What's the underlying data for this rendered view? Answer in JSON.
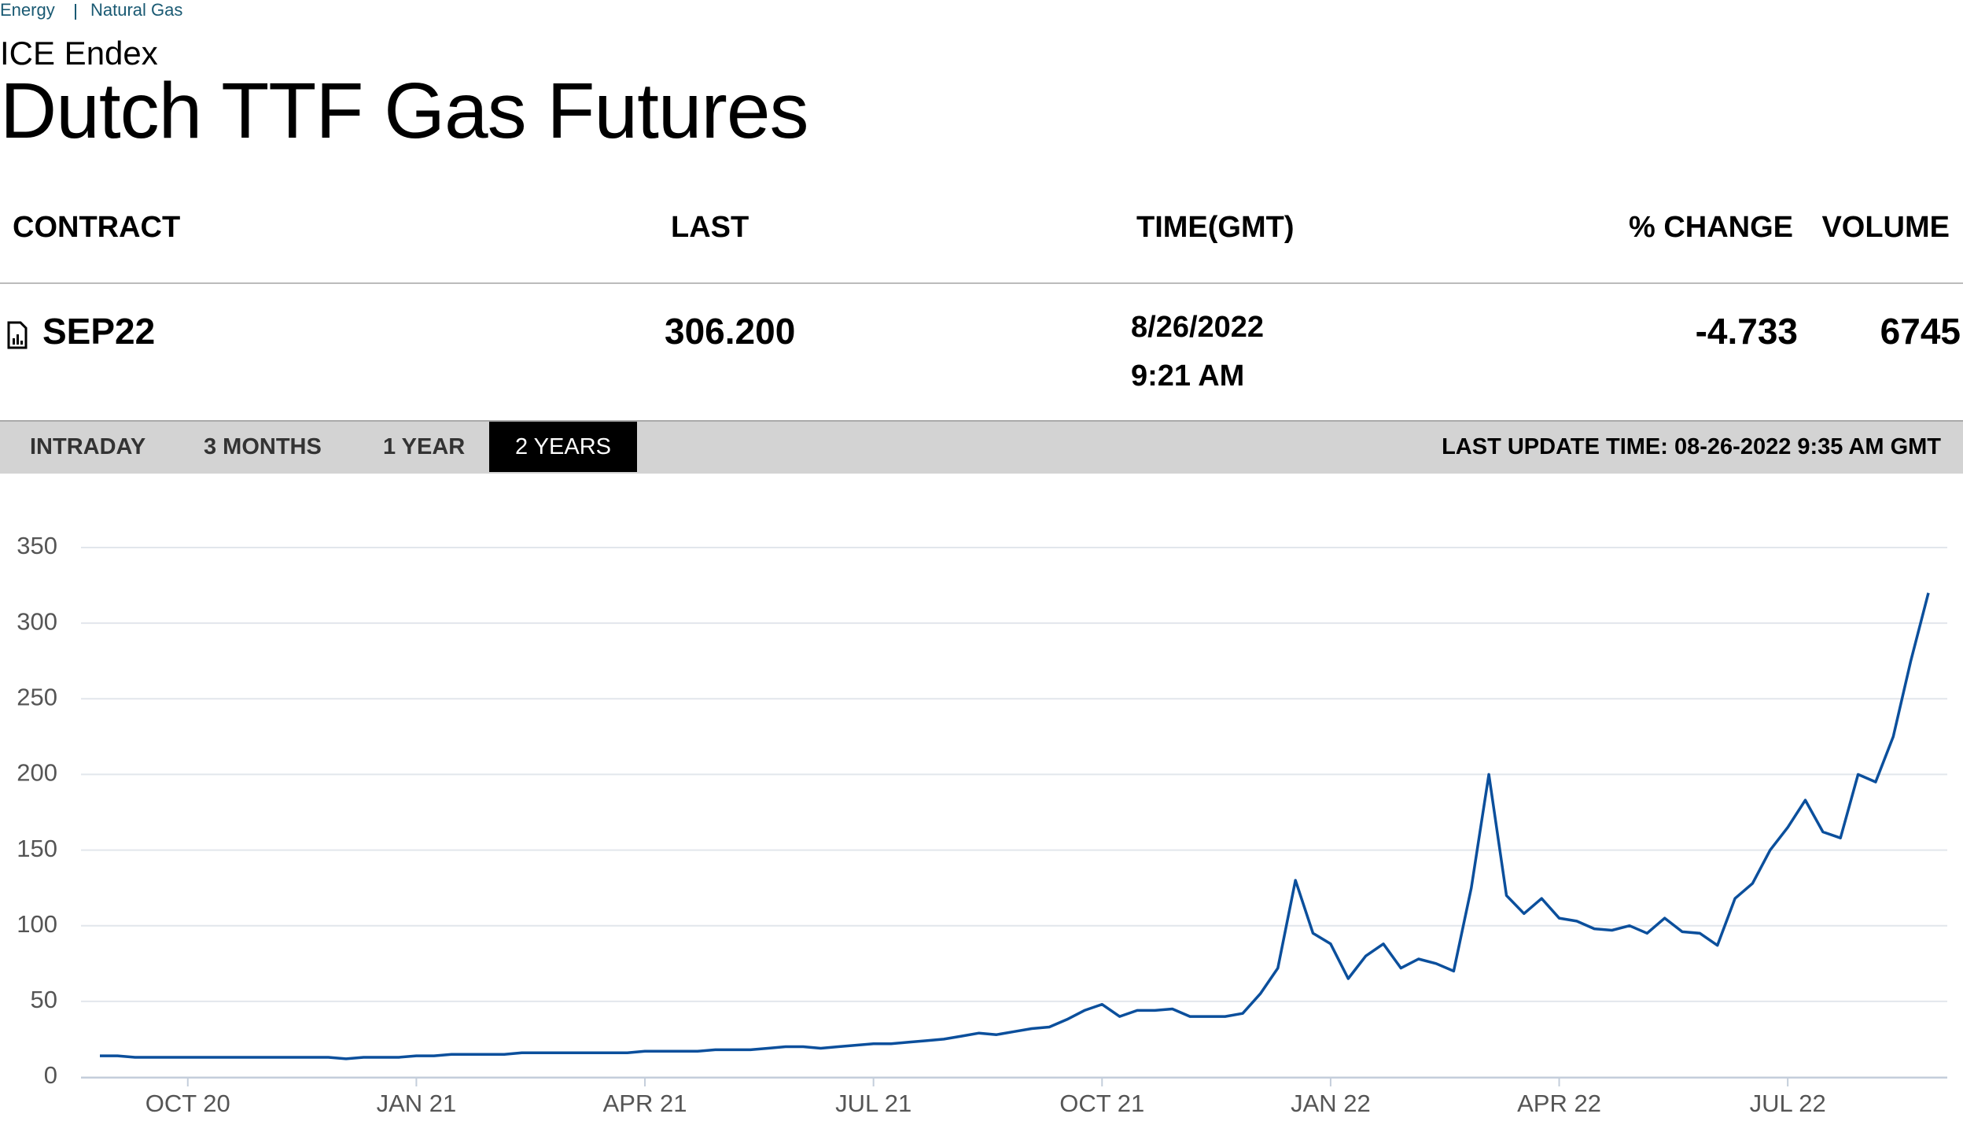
{
  "breadcrumb": [
    "Energy",
    "Natural Gas"
  ],
  "exchange": "ICE Endex",
  "title": "Dutch TTF Gas Futures",
  "table": {
    "headers": [
      "CONTRACT",
      "LAST",
      "TIME(GMT)",
      "% CHANGE",
      "VOLUME"
    ],
    "rows": [
      {
        "contract": "SEP22",
        "last": "306.200",
        "date": "8/26/2022",
        "time": "9:21 AM",
        "change": "-4.733",
        "volume": "6745"
      }
    ]
  },
  "tabs": [
    "INTRADAY",
    "3 MONTHS",
    "1 YEAR",
    "2 YEARS"
  ],
  "selected_tab": 3,
  "last_update": "LAST UPDATE TIME: 08-26-2022 9:35 AM GMT",
  "chart_data": {
    "type": "line",
    "color": "#0b4f9c",
    "grid": true,
    "ylim": [
      0,
      350
    ],
    "yticks": [
      0,
      50,
      100,
      150,
      200,
      250,
      300,
      350
    ],
    "categories": [
      null,
      null,
      null,
      null,
      null,
      "OCT 20",
      null,
      null,
      null,
      null,
      null,
      null,
      null,
      null,
      null,
      null,
      null,
      null,
      "JAN 21",
      null,
      null,
      null,
      null,
      null,
      null,
      null,
      null,
      null,
      null,
      null,
      null,
      "APR 21",
      null,
      null,
      null,
      null,
      null,
      null,
      null,
      null,
      null,
      null,
      null,
      null,
      "JUL 21",
      null,
      null,
      null,
      null,
      null,
      null,
      null,
      null,
      null,
      null,
      null,
      null,
      "OCT 21",
      null,
      null,
      null,
      null,
      null,
      null,
      null,
      null,
      null,
      null,
      null,
      null,
      "JAN 22",
      null,
      null,
      null,
      null,
      null,
      null,
      null,
      null,
      null,
      null,
      null,
      null,
      "APR 22",
      null,
      null,
      null,
      null,
      null,
      null,
      null,
      null,
      null,
      null,
      null,
      null,
      "JUL 22",
      null,
      null,
      null,
      null,
      null,
      null,
      null,
      null
    ],
    "values": [
      14,
      14,
      13,
      13,
      13,
      13,
      13,
      13,
      13,
      13,
      13,
      13,
      13,
      13,
      12,
      13,
      13,
      13,
      14,
      14,
      15,
      15,
      15,
      15,
      16,
      16,
      16,
      16,
      16,
      16,
      16,
      17,
      17,
      17,
      17,
      18,
      18,
      18,
      19,
      20,
      20,
      19,
      20,
      21,
      22,
      22,
      23,
      24,
      25,
      27,
      29,
      28,
      30,
      32,
      33,
      38,
      44,
      48,
      40,
      44,
      44,
      45,
      40,
      40,
      40,
      42,
      55,
      72,
      130,
      95,
      88,
      65,
      80,
      88,
      72,
      78,
      75,
      70,
      125,
      200,
      120,
      108,
      118,
      105,
      103,
      98,
      97,
      100,
      95,
      105,
      96,
      95,
      87,
      118,
      128,
      150,
      165,
      183,
      162,
      158,
      200,
      195,
      225,
      275,
      320
    ]
  }
}
